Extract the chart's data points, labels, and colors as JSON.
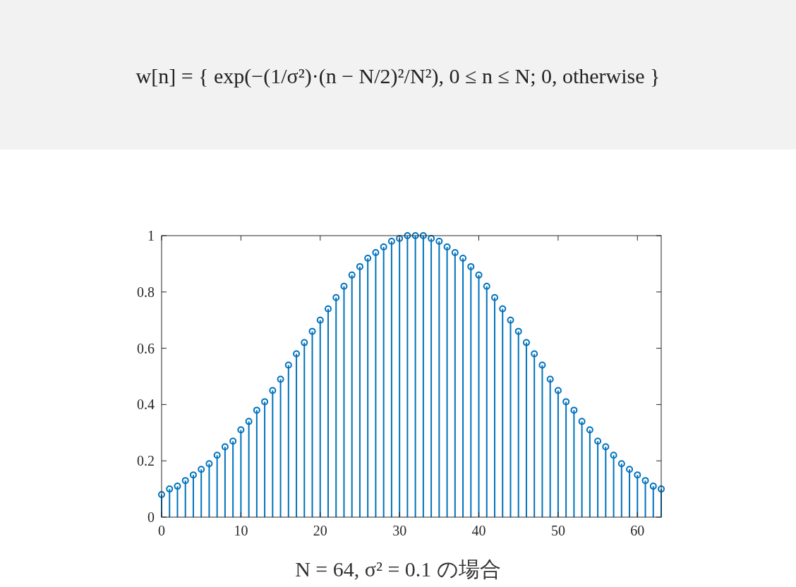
{
  "chart_data": {
    "type": "lollipop",
    "title": "w[n] = { exp(−(1/σ²)·(n − N/2)²/N²),  0 ≤ n ≤ N;   0,  otherwise }",
    "xlabel": "N = 64, σ² = 0.1 の場合",
    "x": [
      0,
      1,
      2,
      3,
      4,
      5,
      6,
      7,
      8,
      9,
      10,
      11,
      12,
      13,
      14,
      15,
      16,
      17,
      18,
      19,
      20,
      21,
      22,
      23,
      24,
      25,
      26,
      27,
      28,
      29,
      30,
      31,
      32,
      33,
      34,
      35,
      36,
      37,
      38,
      39,
      40,
      41,
      42,
      43,
      44,
      45,
      46,
      47,
      48,
      49,
      50,
      51,
      52,
      53,
      54,
      55,
      56,
      57,
      58,
      59,
      60,
      61,
      62,
      63
    ],
    "values": [
      0.08,
      0.1,
      0.11,
      0.13,
      0.15,
      0.17,
      0.19,
      0.22,
      0.25,
      0.27,
      0.31,
      0.34,
      0.38,
      0.41,
      0.45,
      0.49,
      0.54,
      0.58,
      0.62,
      0.66,
      0.7,
      0.74,
      0.78,
      0.82,
      0.86,
      0.89,
      0.92,
      0.94,
      0.96,
      0.98,
      0.99,
      1.0,
      1.0,
      1.0,
      0.99,
      0.98,
      0.96,
      0.94,
      0.92,
      0.89,
      0.86,
      0.82,
      0.78,
      0.74,
      0.7,
      0.66,
      0.62,
      0.58,
      0.54,
      0.49,
      0.45,
      0.41,
      0.38,
      0.34,
      0.31,
      0.27,
      0.25,
      0.22,
      0.19,
      0.17,
      0.15,
      0.13,
      0.11,
      0.1
    ],
    "color": "#0072bd",
    "marker": "circle",
    "xlim": [
      0,
      63
    ],
    "ylim": [
      0,
      1
    ],
    "xticks": [
      0,
      10,
      20,
      30,
      40,
      50,
      60
    ],
    "yticks": [
      0,
      0.2,
      0.4,
      0.6,
      0.8,
      1
    ]
  }
}
